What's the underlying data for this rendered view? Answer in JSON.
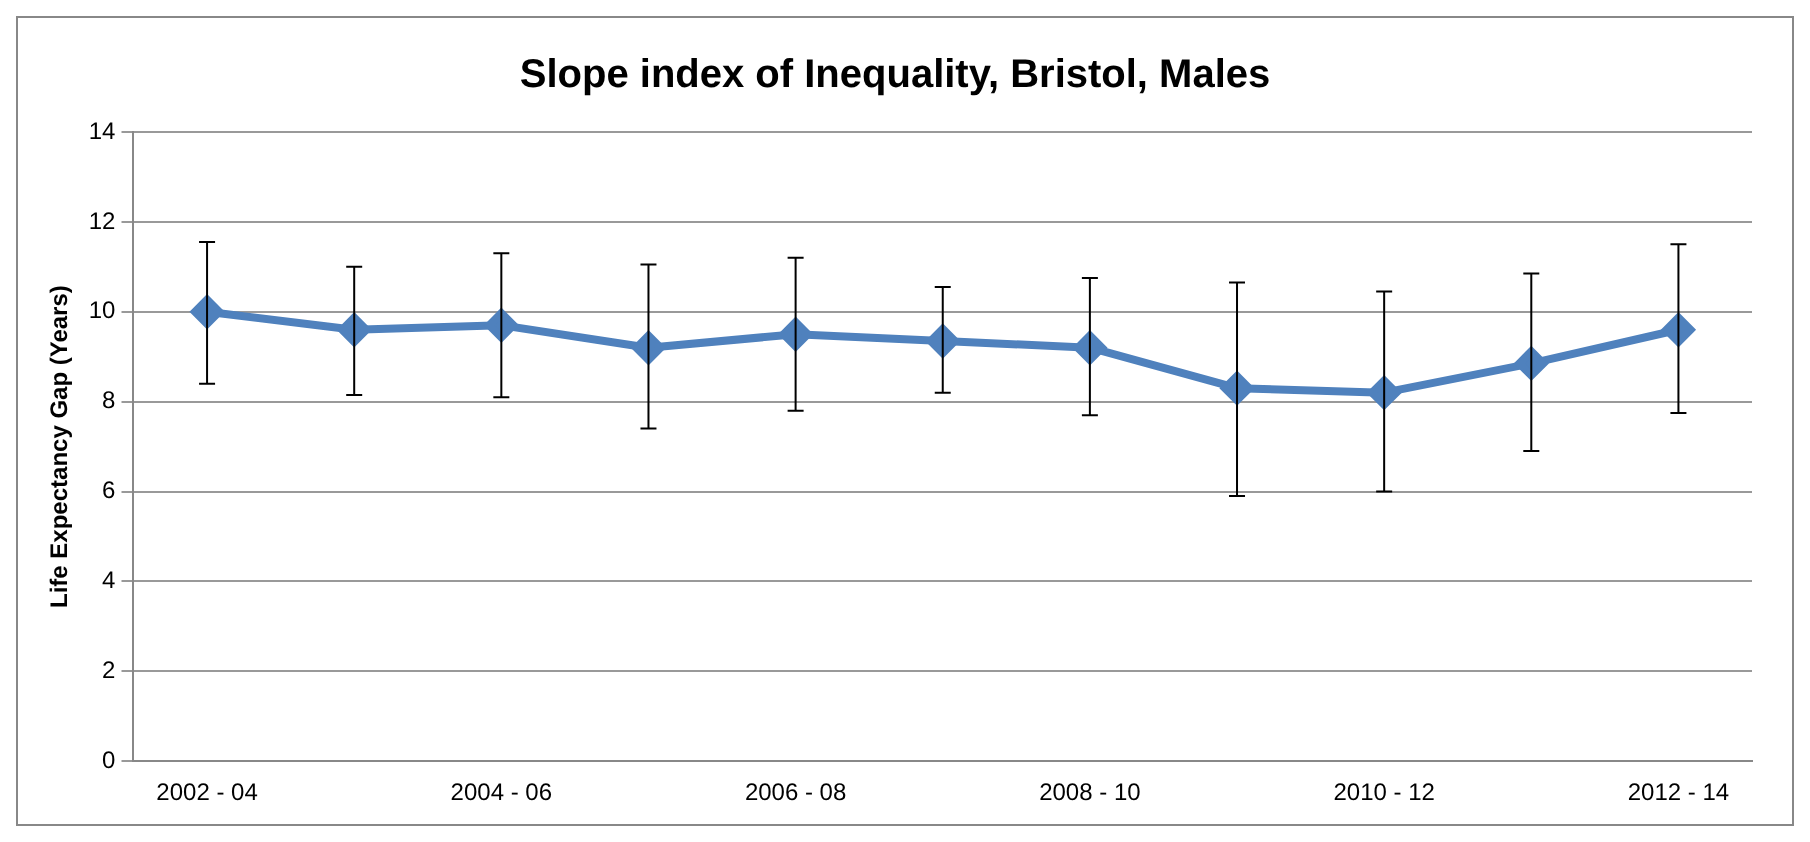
{
  "chart_data": {
    "type": "line",
    "title": "Slope index of Inequality, Bristol, Males",
    "ylabel": "Life Expectancy Gap (Years)",
    "categories": [
      "2002 - 04",
      null,
      "2004 - 06",
      null,
      "2006 - 08",
      null,
      "2008 - 10",
      null,
      "2010 - 12",
      null,
      "2012 - 14"
    ],
    "series": [
      {
        "color": "#4f81bd",
        "values": [
          10.0,
          9.6,
          9.7,
          9.2,
          9.5,
          9.35,
          9.2,
          8.3,
          8.2,
          8.85,
          9.6
        ],
        "errors": [
          [
            8.4,
            11.55
          ],
          [
            8.15,
            11.0
          ],
          [
            8.1,
            11.3
          ],
          [
            7.4,
            11.05
          ],
          [
            7.8,
            11.2
          ],
          [
            8.2,
            10.55
          ],
          [
            7.7,
            10.75
          ],
          [
            5.9,
            10.65
          ],
          [
            6.0,
            10.45
          ],
          [
            6.9,
            10.85
          ],
          [
            7.75,
            11.5
          ]
        ]
      }
    ],
    "ylim": [
      0,
      14
    ],
    "yticks": [
      0,
      2,
      4,
      6,
      8,
      10,
      12,
      14
    ],
    "grid": "y",
    "legend": false,
    "marker": "diamond",
    "line_style": "solid"
  }
}
